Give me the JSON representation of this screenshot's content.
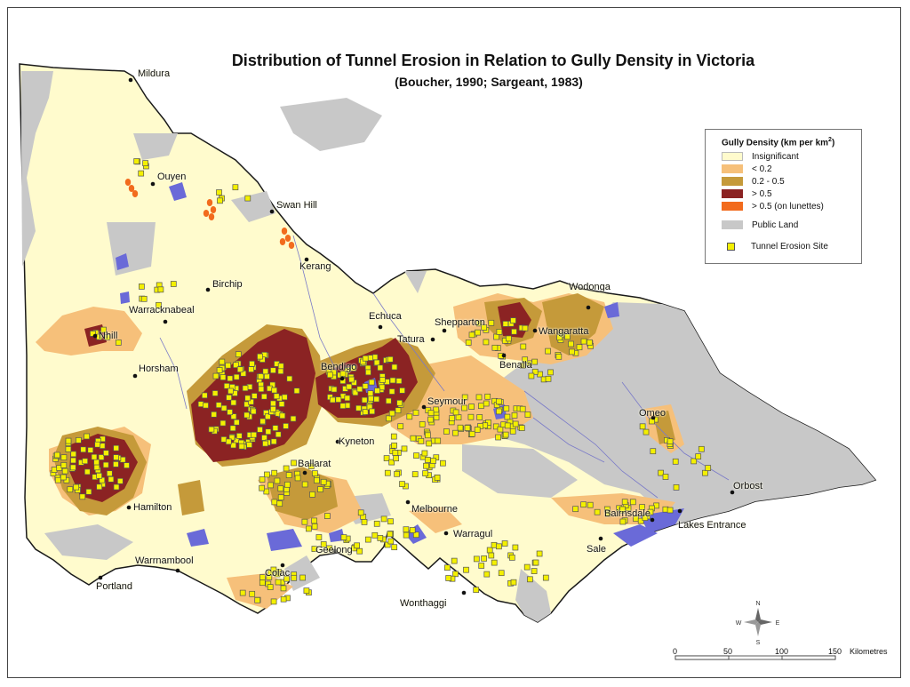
{
  "title": "Distribution of Tunnel Erosion in Relation to Gully Density in Victoria",
  "subtitle": "(Boucher, 1990; Sargeant, 1983)",
  "legend": {
    "title_prefix": "Gully Density (km per km",
    "title_sup": "2",
    "title_suffix": ")",
    "items": [
      {
        "label": "Insignificant",
        "color": "#fffbcd"
      },
      {
        "label": "< 0.2",
        "color": "#f6c07a"
      },
      {
        "label": "0.2 - 0.5",
        "color": "#c59a3a"
      },
      {
        "label": "> 0.5",
        "color": "#8b2323"
      },
      {
        "label": "> 0.5 (on lunettes)",
        "color": "#f26b1d"
      },
      {
        "label": "Public Land",
        "color": "#c8c8c8"
      },
      {
        "label": "Tunnel Erosion Site",
        "color": "#f4f000"
      }
    ]
  },
  "places": [
    "Mildura",
    "Ouyen",
    "Swan Hill",
    "Kerang",
    "Birchip",
    "Warracknabeal",
    "Nhill",
    "Horsham",
    "Echuca",
    "Shepparton",
    "Tatura",
    "Wodonga",
    "Wangaratta",
    "Benalla",
    "Bendigo",
    "Seymour",
    "Kyneton",
    "Omeo",
    "Ballarat",
    "Hamilton",
    "Melbourne",
    "Orbost",
    "Bairnsdale",
    "Lakes Entrance",
    "Warragul",
    "Sale",
    "Geelong",
    "Warrnambool",
    "Colac",
    "Portland",
    "Wonthaggi"
  ],
  "compass": {
    "n": "N",
    "e": "E",
    "s": "S",
    "w": "W"
  },
  "scale": {
    "ticks": [
      "0",
      "50",
      "100",
      "150"
    ],
    "unit": "Kilometres"
  },
  "colors": {
    "base": "#fffbcd",
    "public_land": "#c8c8c8",
    "water": "#6a6ad8",
    "low": "#f6c07a",
    "mid": "#c59a3a",
    "high": "#8b2323",
    "lunette": "#f26b1d",
    "site": "#f4f000",
    "coast": "#1a1a1a"
  }
}
